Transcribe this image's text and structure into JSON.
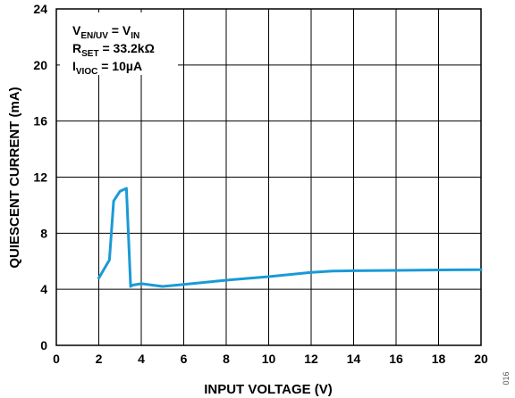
{
  "chart_data": {
    "type": "line",
    "xlabel": "INPUT VOLTAGE (V)",
    "ylabel": "QUIESCENT CURRENT (mA)",
    "xlim": [
      0,
      20
    ],
    "ylim": [
      0,
      24
    ],
    "xticks": [
      "0",
      "2",
      "4",
      "6",
      "8",
      "10",
      "12",
      "14",
      "16",
      "18",
      "20"
    ],
    "yticks": [
      "0",
      "4",
      "8",
      "12",
      "16",
      "20",
      "24"
    ],
    "grid": true,
    "series_color": "#1a9ad6",
    "series": [
      {
        "x": [
          2.0,
          2.5,
          2.7,
          3.0,
          3.3,
          3.5,
          3.6,
          4.0,
          5.0,
          6.0,
          8.0,
          10.0,
          12.0,
          13.0,
          14.0,
          16.0,
          18.0,
          20.0
        ],
        "y": [
          4.8,
          6.1,
          10.3,
          11.0,
          11.2,
          4.2,
          4.3,
          4.4,
          4.2,
          4.35,
          4.65,
          4.9,
          5.2,
          5.3,
          5.32,
          5.35,
          5.38,
          5.4
        ]
      }
    ],
    "annotations": [
      {
        "main": "V",
        "sub": "EN/UV",
        "mid": " = V",
        "sub2": "IN"
      },
      {
        "main": "R",
        "sub": "SET",
        "mid": " = 33.2kΩ",
        "sub2": ""
      },
      {
        "main": "I",
        "sub": "VIOC",
        "mid": " = 10µA",
        "sub2": ""
      }
    ]
  },
  "figure_code": "016"
}
